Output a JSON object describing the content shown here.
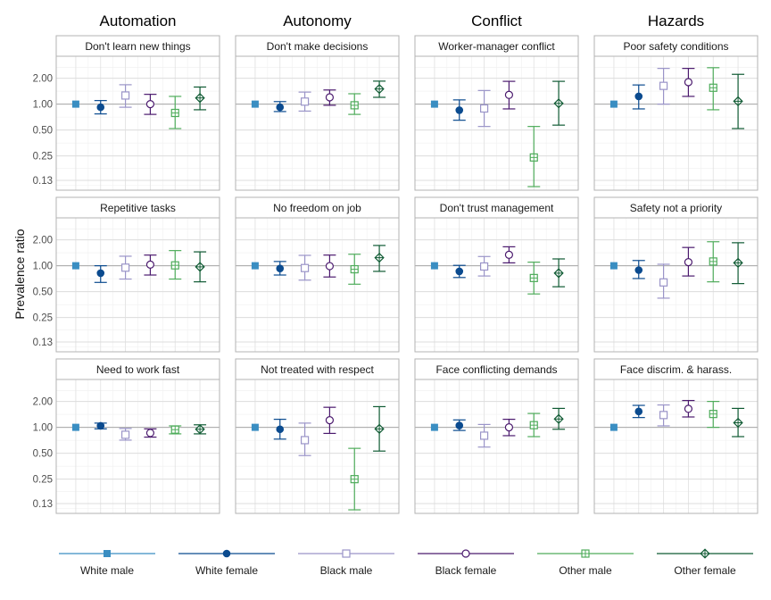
{
  "chart_data": {
    "type": "scatter",
    "ylabel": "Prevalence ratio",
    "y_scale": "log",
    "y_ticks": [
      2.0,
      1.0,
      0.5,
      0.25,
      0.13
    ],
    "y_tick_labels": [
      "2.00",
      "1.00",
      "0.50",
      "0.25",
      "0.13"
    ],
    "ylim": [
      0.1,
      3.6
    ],
    "reference_line": 1.0,
    "grid": true,
    "columns": [
      "Automation",
      "Autonomy",
      "Conflict",
      "Hazards"
    ],
    "series": [
      {
        "name": "White male",
        "color": "#3a8ec2",
        "marker": "square-filled"
      },
      {
        "name": "White female",
        "color": "#0b4b8f",
        "marker": "circle-filled"
      },
      {
        "name": "Black male",
        "color": "#9a94c8",
        "marker": "square-open"
      },
      {
        "name": "Black female",
        "color": "#4b1a6e",
        "marker": "circle-open"
      },
      {
        "name": "Other male",
        "color": "#4fac5b",
        "marker": "square-cross"
      },
      {
        "name": "Other female",
        "color": "#0f5a33",
        "marker": "diamond-cross"
      }
    ],
    "panels": [
      {
        "title": "Don't learn new things",
        "column": "Automation",
        "points": [
          {
            "est": 1.0,
            "lo": null,
            "hi": null
          },
          {
            "est": 0.92,
            "lo": 0.77,
            "hi": 1.1
          },
          {
            "est": 1.26,
            "lo": 0.92,
            "hi": 1.68
          },
          {
            "est": 1.0,
            "lo": 0.76,
            "hi": 1.3
          },
          {
            "est": 0.79,
            "lo": 0.52,
            "hi": 1.23
          },
          {
            "est": 1.18,
            "lo": 0.86,
            "hi": 1.58
          }
        ]
      },
      {
        "title": "Don't make decisions",
        "column": "Autonomy",
        "points": [
          {
            "est": 1.0,
            "lo": null,
            "hi": null
          },
          {
            "est": 0.92,
            "lo": 0.82,
            "hi": 1.07
          },
          {
            "est": 1.07,
            "lo": 0.83,
            "hi": 1.38
          },
          {
            "est": 1.2,
            "lo": 0.97,
            "hi": 1.46
          },
          {
            "est": 0.97,
            "lo": 0.76,
            "hi": 1.32
          },
          {
            "est": 1.5,
            "lo": 1.2,
            "hi": 1.85
          }
        ]
      },
      {
        "title": "Worker-manager conflict",
        "column": "Conflict",
        "points": [
          {
            "est": 1.0,
            "lo": null,
            "hi": null
          },
          {
            "est": 0.85,
            "lo": 0.65,
            "hi": 1.12
          },
          {
            "est": 0.89,
            "lo": 0.55,
            "hi": 1.44
          },
          {
            "est": 1.28,
            "lo": 0.88,
            "hi": 1.84
          },
          {
            "est": 0.24,
            "lo": 0.11,
            "hi": 0.55
          },
          {
            "est": 1.02,
            "lo": 0.57,
            "hi": 1.84
          }
        ]
      },
      {
        "title": "Poor safety conditions",
        "column": "Hazards",
        "points": [
          {
            "est": 1.0,
            "lo": null,
            "hi": null
          },
          {
            "est": 1.23,
            "lo": 0.88,
            "hi": 1.67
          },
          {
            "est": 1.63,
            "lo": 1.0,
            "hi": 2.6
          },
          {
            "est": 1.8,
            "lo": 1.23,
            "hi": 2.6
          },
          {
            "est": 1.55,
            "lo": 0.86,
            "hi": 2.65
          },
          {
            "est": 1.08,
            "lo": 0.52,
            "hi": 2.22
          }
        ]
      },
      {
        "title": "Repetitive tasks",
        "column": "Automation",
        "points": [
          {
            "est": 1.0,
            "lo": null,
            "hi": null
          },
          {
            "est": 0.82,
            "lo": 0.64,
            "hi": 1.0
          },
          {
            "est": 0.95,
            "lo": 0.7,
            "hi": 1.29
          },
          {
            "est": 1.03,
            "lo": 0.78,
            "hi": 1.33
          },
          {
            "est": 1.01,
            "lo": 0.7,
            "hi": 1.5
          },
          {
            "est": 0.97,
            "lo": 0.65,
            "hi": 1.45
          }
        ]
      },
      {
        "title": "No freedom on job",
        "column": "Autonomy",
        "points": [
          {
            "est": 1.0,
            "lo": null,
            "hi": null
          },
          {
            "est": 0.93,
            "lo": 0.78,
            "hi": 1.12
          },
          {
            "est": 0.94,
            "lo": 0.68,
            "hi": 1.32
          },
          {
            "est": 0.99,
            "lo": 0.74,
            "hi": 1.33
          },
          {
            "est": 0.91,
            "lo": 0.61,
            "hi": 1.36
          },
          {
            "est": 1.24,
            "lo": 0.86,
            "hi": 1.72
          }
        ]
      },
      {
        "title": "Don't trust management",
        "column": "Conflict",
        "points": [
          {
            "est": 1.0,
            "lo": null,
            "hi": null
          },
          {
            "est": 0.86,
            "lo": 0.73,
            "hi": 1.01
          },
          {
            "est": 0.98,
            "lo": 0.76,
            "hi": 1.28
          },
          {
            "est": 1.34,
            "lo": 1.08,
            "hi": 1.66
          },
          {
            "est": 0.72,
            "lo": 0.47,
            "hi": 1.1
          },
          {
            "est": 0.82,
            "lo": 0.57,
            "hi": 1.2
          }
        ]
      },
      {
        "title": "Safety not a priority",
        "column": "Hazards",
        "points": [
          {
            "est": 1.0,
            "lo": null,
            "hi": null
          },
          {
            "est": 0.89,
            "lo": 0.71,
            "hi": 1.15
          },
          {
            "est": 0.64,
            "lo": 0.42,
            "hi": 1.04
          },
          {
            "est": 1.1,
            "lo": 0.76,
            "hi": 1.63
          },
          {
            "est": 1.12,
            "lo": 0.65,
            "hi": 1.9
          },
          {
            "est": 1.08,
            "lo": 0.62,
            "hi": 1.85
          }
        ]
      },
      {
        "title": "Need to work fast",
        "column": "Automation",
        "points": [
          {
            "est": 1.0,
            "lo": null,
            "hi": null
          },
          {
            "est": 1.04,
            "lo": 0.96,
            "hi": 1.12
          },
          {
            "est": 0.82,
            "lo": 0.71,
            "hi": 0.97
          },
          {
            "est": 0.86,
            "lo": 0.77,
            "hi": 0.96
          },
          {
            "est": 0.94,
            "lo": 0.84,
            "hi": 1.04
          },
          {
            "est": 0.95,
            "lo": 0.84,
            "hi": 1.07
          }
        ]
      },
      {
        "title": "Not treated with respect",
        "column": "Autonomy",
        "points": [
          {
            "est": 1.0,
            "lo": null,
            "hi": null
          },
          {
            "est": 0.95,
            "lo": 0.73,
            "hi": 1.24
          },
          {
            "est": 0.71,
            "lo": 0.47,
            "hi": 1.12
          },
          {
            "est": 1.21,
            "lo": 0.85,
            "hi": 1.71
          },
          {
            "est": 0.25,
            "lo": 0.11,
            "hi": 0.57
          },
          {
            "est": 0.96,
            "lo": 0.53,
            "hi": 1.74
          }
        ]
      },
      {
        "title": "Face conflicting demands",
        "column": "Conflict",
        "points": [
          {
            "est": 1.0,
            "lo": null,
            "hi": null
          },
          {
            "est": 1.05,
            "lo": 0.92,
            "hi": 1.22
          },
          {
            "est": 0.8,
            "lo": 0.59,
            "hi": 1.08
          },
          {
            "est": 1.0,
            "lo": 0.8,
            "hi": 1.24
          },
          {
            "est": 1.06,
            "lo": 0.78,
            "hi": 1.45
          },
          {
            "est": 1.25,
            "lo": 0.95,
            "hi": 1.66
          }
        ]
      },
      {
        "title": "Face discrim. & harass.",
        "column": "Hazards",
        "points": [
          {
            "est": 1.0,
            "lo": null,
            "hi": null
          },
          {
            "est": 1.53,
            "lo": 1.3,
            "hi": 1.8
          },
          {
            "est": 1.39,
            "lo": 1.04,
            "hi": 1.82
          },
          {
            "est": 1.64,
            "lo": 1.32,
            "hi": 2.05
          },
          {
            "est": 1.43,
            "lo": 1.0,
            "hi": 2.0
          },
          {
            "est": 1.13,
            "lo": 0.78,
            "hi": 1.66
          }
        ]
      }
    ],
    "legend_position": "bottom"
  }
}
